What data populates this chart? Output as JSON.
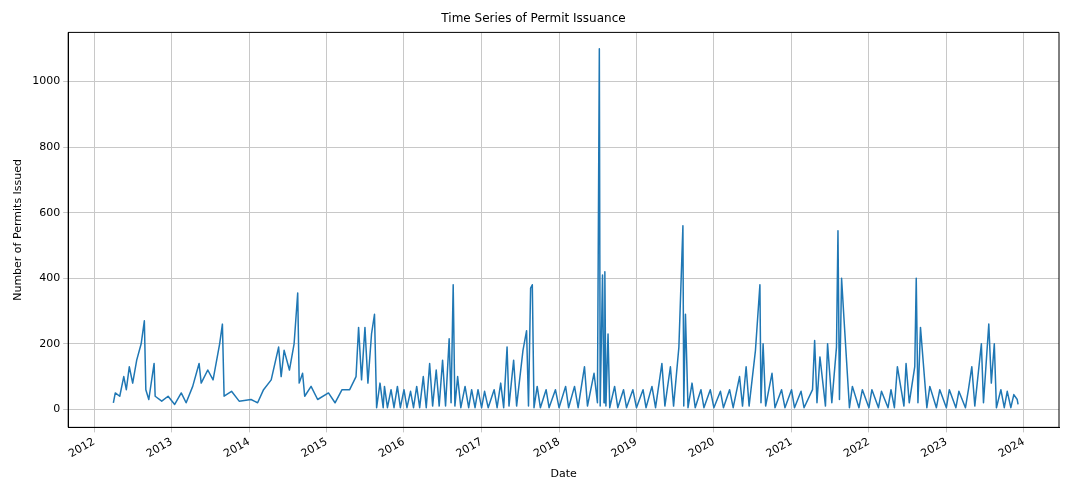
{
  "chart_data": {
    "type": "line",
    "title": "Time Series of Permit Issuance",
    "xlabel": "Date",
    "ylabel": "Number of Permits Issued",
    "grid": true,
    "legend": false,
    "marker": "none",
    "line_style": "solid",
    "xlim": [
      "2011-09-01",
      "2024-06-15"
    ],
    "xticks": [
      "2012",
      "2013",
      "2014",
      "2015",
      "2016",
      "2017",
      "2018",
      "2019",
      "2020",
      "2021",
      "2022",
      "2023",
      "2024"
    ],
    "ylim": [
      -55,
      1150
    ],
    "yticks": [
      0,
      200,
      400,
      600,
      800,
      1000
    ],
    "x": [
      "2012-04-01",
      "2012-04-10",
      "2012-05-01",
      "2012-05-20",
      "2012-06-01",
      "2012-06-15",
      "2012-07-01",
      "2012-07-20",
      "2012-08-10",
      "2012-08-25",
      "2012-09-01",
      "2012-09-15",
      "2012-10-10",
      "2012-10-15",
      "2012-11-15",
      "2012-12-15",
      "2013-01-15",
      "2013-02-15",
      "2013-03-10",
      "2013-04-10",
      "2013-05-10",
      "2013-05-20",
      "2013-06-20",
      "2013-07-15",
      "2013-08-15",
      "2013-08-28",
      "2013-09-05",
      "2013-10-10",
      "2013-11-15",
      "2014-01-10",
      "2014-02-10",
      "2014-03-10",
      "2014-04-15",
      "2014-05-20",
      "2014-06-01",
      "2014-06-15",
      "2014-07-10",
      "2014-08-01",
      "2014-08-18",
      "2014-08-25",
      "2014-09-10",
      "2014-09-20",
      "2014-10-20",
      "2014-11-20",
      "2015-01-10",
      "2015-02-10",
      "2015-03-15",
      "2015-04-20",
      "2015-05-20",
      "2015-06-01",
      "2015-06-15",
      "2015-07-01",
      "2015-07-15",
      "2015-08-01",
      "2015-08-15",
      "2015-08-25",
      "2015-09-10",
      "2015-09-25",
      "2015-10-01",
      "2015-10-15",
      "2015-11-01",
      "2015-11-15",
      "2015-12-01",
      "2015-12-15",
      "2016-01-01",
      "2016-01-15",
      "2016-02-01",
      "2016-02-15",
      "2016-03-01",
      "2016-03-15",
      "2016-04-01",
      "2016-04-15",
      "2016-05-01",
      "2016-05-15",
      "2016-06-01",
      "2016-06-15",
      "2016-07-01",
      "2016-07-15",
      "2016-08-01",
      "2016-08-10",
      "2016-08-20",
      "2016-08-28",
      "2016-09-10",
      "2016-09-25",
      "2016-10-15",
      "2016-11-01",
      "2016-11-15",
      "2016-12-01",
      "2016-12-15",
      "2017-01-01",
      "2017-01-15",
      "2017-02-01",
      "2017-03-01",
      "2017-03-15",
      "2017-04-01",
      "2017-04-15",
      "2017-05-01",
      "2017-05-10",
      "2017-06-01",
      "2017-06-15",
      "2017-07-15",
      "2017-08-01",
      "2017-08-10",
      "2017-08-20",
      "2017-08-28",
      "2017-09-05",
      "2017-09-20",
      "2017-10-05",
      "2017-11-01",
      "2017-11-15",
      "2017-12-15",
      "2018-01-01",
      "2018-02-01",
      "2018-02-15",
      "2018-03-15",
      "2018-04-01",
      "2018-05-01",
      "2018-05-15",
      "2018-06-15",
      "2018-07-01",
      "2018-07-10",
      "2018-07-14",
      "2018-07-25",
      "2018-08-01",
      "2018-08-05",
      "2018-08-10",
      "2018-08-20",
      "2018-08-28",
      "2018-09-20",
      "2018-10-05",
      "2018-11-01",
      "2018-11-15",
      "2018-12-15",
      "2019-01-01",
      "2019-02-01",
      "2019-02-15",
      "2019-03-15",
      "2019-04-01",
      "2019-05-01",
      "2019-05-15",
      "2019-06-10",
      "2019-06-25",
      "2019-07-20",
      "2019-08-08",
      "2019-08-12",
      "2019-08-20",
      "2019-09-01",
      "2019-09-20",
      "2019-10-05",
      "2019-11-01",
      "2019-11-15",
      "2019-12-15",
      "2020-01-01",
      "2020-02-01",
      "2020-02-15",
      "2020-03-15",
      "2020-04-01",
      "2020-05-01",
      "2020-05-15",
      "2020-06-01",
      "2020-06-15",
      "2020-07-15",
      "2020-08-05",
      "2020-08-10",
      "2020-08-20",
      "2020-09-01",
      "2020-10-01",
      "2020-10-15",
      "2020-11-15",
      "2020-12-01",
      "2021-01-01",
      "2021-01-15",
      "2021-02-15",
      "2021-03-01",
      "2021-04-10",
      "2021-04-20",
      "2021-05-01",
      "2021-05-15",
      "2021-06-10",
      "2021-06-20",
      "2021-07-10",
      "2021-08-01",
      "2021-08-08",
      "2021-08-15",
      "2021-08-25",
      "2021-09-05",
      "2021-10-01",
      "2021-10-15",
      "2021-11-15",
      "2021-12-01",
      "2022-01-01",
      "2022-01-15",
      "2022-02-15",
      "2022-03-01",
      "2022-04-01",
      "2022-04-15",
      "2022-05-01",
      "2022-05-15",
      "2022-06-15",
      "2022-06-25",
      "2022-07-10",
      "2022-08-05",
      "2022-08-12",
      "2022-08-20",
      "2022-09-01",
      "2022-10-01",
      "2022-10-15",
      "2022-11-15",
      "2022-12-01",
      "2023-01-01",
      "2023-01-15",
      "2023-02-15",
      "2023-03-01",
      "2023-04-01",
      "2023-04-15",
      "2023-05-01",
      "2023-05-15",
      "2023-06-15",
      "2023-06-25",
      "2023-07-20",
      "2023-08-01",
      "2023-08-15",
      "2023-08-25",
      "2023-09-15",
      "2023-10-01",
      "2023-10-15",
      "2023-11-01",
      "2023-11-15",
      "2023-12-01",
      "2023-12-05"
    ],
    "series": [
      {
        "color": "#1f77b4",
        "values": [
          20,
          50,
          40,
          100,
          60,
          130,
          80,
          150,
          200,
          270,
          60,
          30,
          140,
          40,
          25,
          40,
          15,
          50,
          20,
          70,
          140,
          80,
          120,
          90,
          200,
          260,
          40,
          55,
          25,
          30,
          20,
          60,
          90,
          190,
          100,
          180,
          120,
          200,
          355,
          80,
          110,
          40,
          70,
          30,
          50,
          20,
          60,
          60,
          100,
          250,
          90,
          250,
          80,
          230,
          290,
          5,
          80,
          5,
          70,
          5,
          60,
          5,
          70,
          5,
          60,
          5,
          55,
          5,
          70,
          5,
          100,
          5,
          140,
          10,
          120,
          10,
          150,
          10,
          215,
          20,
          380,
          10,
          100,
          5,
          70,
          5,
          60,
          5,
          60,
          5,
          55,
          5,
          60,
          5,
          80,
          5,
          190,
          10,
          150,
          10,
          180,
          240,
          10,
          370,
          380,
          5,
          70,
          5,
          60,
          5,
          60,
          5,
          70,
          5,
          70,
          5,
          130,
          10,
          110,
          20,
          1100,
          10,
          410,
          20,
          420,
          10,
          230,
          5,
          70,
          5,
          60,
          5,
          60,
          5,
          60,
          5,
          70,
          5,
          140,
          10,
          130,
          10,
          190,
          560,
          10,
          290,
          5,
          80,
          5,
          60,
          5,
          60,
          5,
          55,
          5,
          60,
          5,
          100,
          10,
          130,
          10,
          180,
          380,
          20,
          200,
          10,
          110,
          5,
          60,
          5,
          60,
          5,
          55,
          5,
          60,
          210,
          20,
          160,
          10,
          200,
          20,
          190,
          545,
          30,
          400,
          280,
          5,
          70,
          5,
          60,
          5,
          60,
          5,
          55,
          5,
          60,
          5,
          130,
          10,
          140,
          20,
          130,
          400,
          20,
          250,
          5,
          70,
          5,
          60,
          5,
          60,
          5,
          55,
          5,
          60,
          130,
          10,
          200,
          20,
          260,
          80,
          200,
          5,
          60,
          5,
          55,
          5,
          45,
          30,
          15
        ]
      }
    ]
  }
}
